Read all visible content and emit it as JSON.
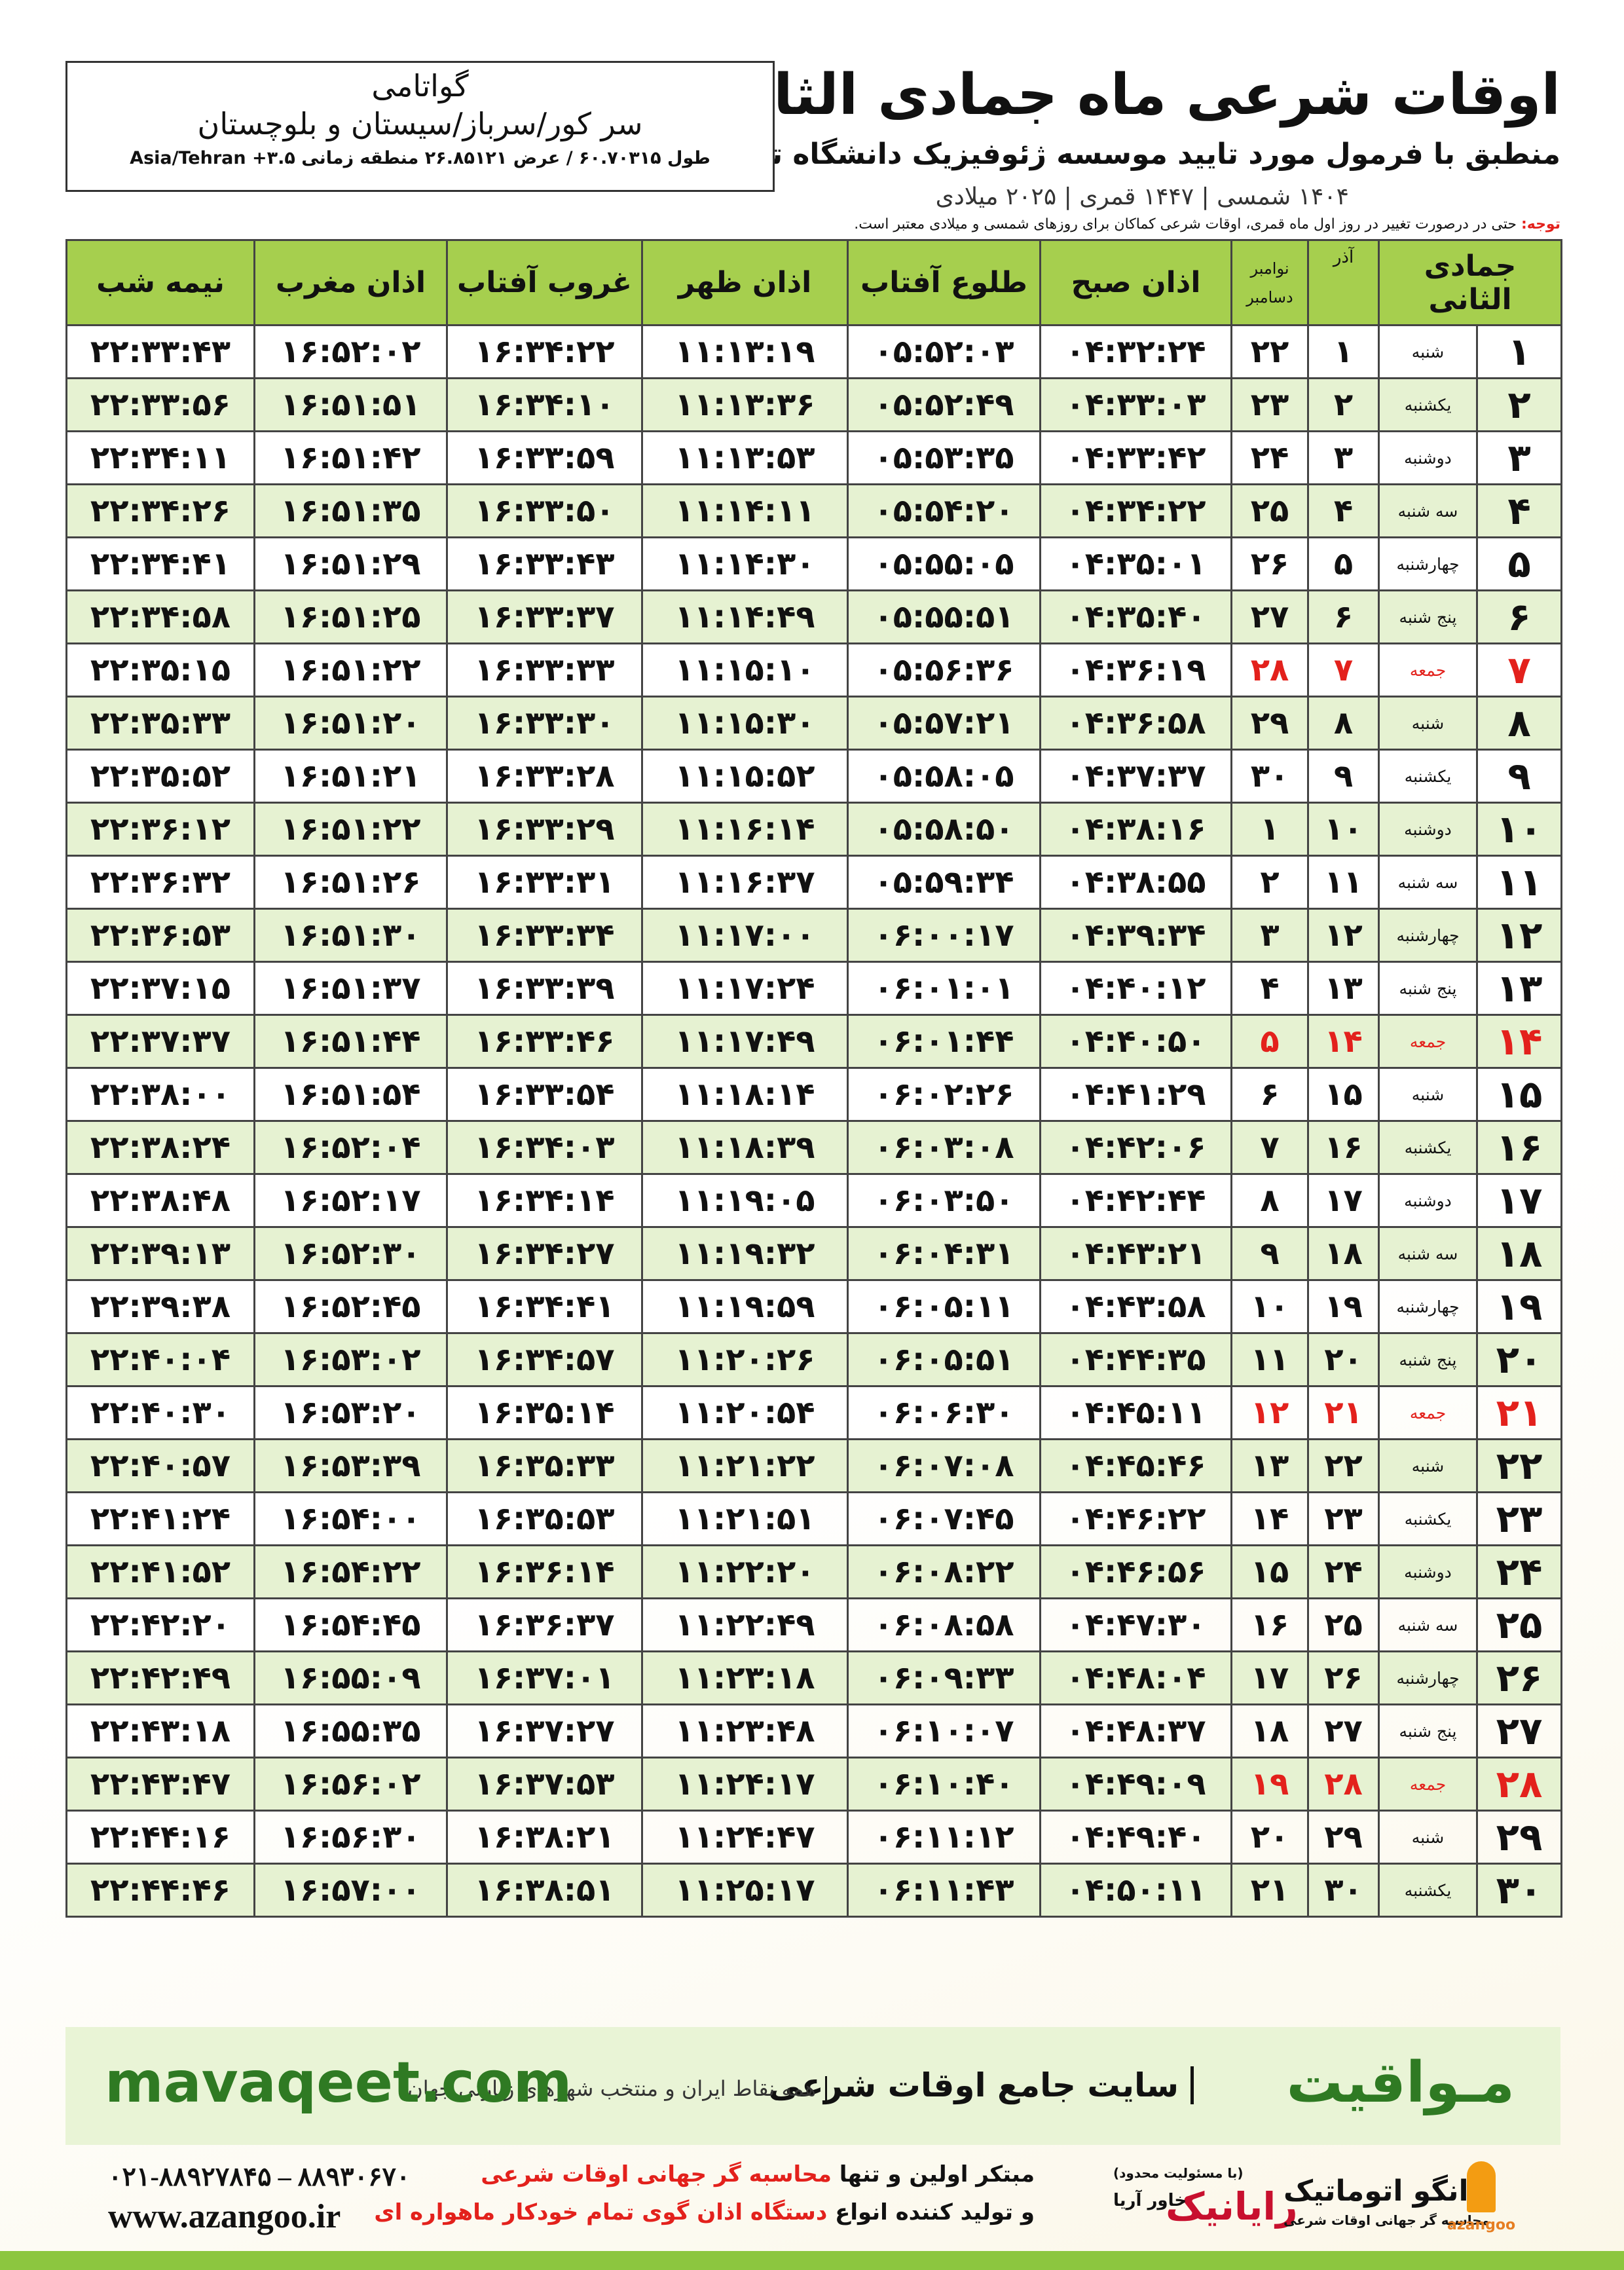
{
  "header": {
    "title": "اوقات شرعی ماه جمادی الثانی",
    "subtitle": "منطبق با فرمول مورد تایید موسسه ژئوفیزیک دانشگاه تهران",
    "dates": "۱۴۰۴ شمسی | ۱۴۴۷ قمری | ۲۰۲۵ میلادی"
  },
  "location": {
    "name": "گواتامی",
    "region": "سر کور/سرباز/سیستان و بلوچستان",
    "coords": "طول ۶۰.۷۰۳۱۵ / عرض ۲۶.۸۵۱۲۱ منطقه زمانی ۳.۵+ Asia/Tehran"
  },
  "note": {
    "label": "توجه:",
    "text": "حتی در درصورت تغییر در روز اول ماه قمری، اوقات شرعی کماکان برای روزهای شمسی و میلادی معتبر است."
  },
  "table": {
    "headers": [
      "جمادی الثانی",
      "آذر",
      [
        "نوامبر",
        "دسامبر"
      ],
      "اذان صبح",
      "طلوع آفتاب",
      "اذان ظهر",
      "غروب آفتاب",
      "اذان مغرب",
      "نیمه شب"
    ],
    "holiday_color": "#e3211c",
    "rows": [
      {
        "cells": [
          "۱",
          "شنبه",
          "۱",
          "۲۲",
          "۰۴:۳۲:۲۴",
          "۰۵:۵۲:۰۳",
          "۱۱:۱۳:۱۹",
          "۱۶:۳۴:۲۲",
          "۱۶:۵۲:۰۲",
          "۲۲:۳۳:۴۳"
        ]
      },
      {
        "cells": [
          "۲",
          "یکشنبه",
          "۲",
          "۲۳",
          "۰۴:۳۳:۰۳",
          "۰۵:۵۲:۴۹",
          "۱۱:۱۳:۳۶",
          "۱۶:۳۴:۱۰",
          "۱۶:۵۱:۵۱",
          "۲۲:۳۳:۵۶"
        ]
      },
      {
        "cells": [
          "۳",
          "دوشنبه",
          "۳",
          "۲۴",
          "۰۴:۳۳:۴۲",
          "۰۵:۵۳:۳۵",
          "۱۱:۱۳:۵۳",
          "۱۶:۳۳:۵۹",
          "۱۶:۵۱:۴۲",
          "۲۲:۳۴:۱۱"
        ]
      },
      {
        "cells": [
          "۴",
          "سه شنبه",
          "۴",
          "۲۵",
          "۰۴:۳۴:۲۲",
          "۰۵:۵۴:۲۰",
          "۱۱:۱۴:۱۱",
          "۱۶:۳۳:۵۰",
          "۱۶:۵۱:۳۵",
          "۲۲:۳۴:۲۶"
        ]
      },
      {
        "cells": [
          "۵",
          "چهارشنبه",
          "۵",
          "۲۶",
          "۰۴:۳۵:۰۱",
          "۰۵:۵۵:۰۵",
          "۱۱:۱۴:۳۰",
          "۱۶:۳۳:۴۳",
          "۱۶:۵۱:۲۹",
          "۲۲:۳۴:۴۱"
        ]
      },
      {
        "cells": [
          "۶",
          "پنج شنبه",
          "۶",
          "۲۷",
          "۰۴:۳۵:۴۰",
          "۰۵:۵۵:۵۱",
          "۱۱:۱۴:۴۹",
          "۱۶:۳۳:۳۷",
          "۱۶:۵۱:۲۵",
          "۲۲:۳۴:۵۸"
        ]
      },
      {
        "cells": [
          "۷",
          "جمعه",
          "۷",
          "۲۸",
          "۰۴:۳۶:۱۹",
          "۰۵:۵۶:۳۶",
          "۱۱:۱۵:۱۰",
          "۱۶:۳۳:۳۳",
          "۱۶:۵۱:۲۲",
          "۲۲:۳۵:۱۵"
        ],
        "holiday": true
      },
      {
        "cells": [
          "۸",
          "شنبه",
          "۸",
          "۲۹",
          "۰۴:۳۶:۵۸",
          "۰۵:۵۷:۲۱",
          "۱۱:۱۵:۳۰",
          "۱۶:۳۳:۳۰",
          "۱۶:۵۱:۲۰",
          "۲۲:۳۵:۳۳"
        ]
      },
      {
        "cells": [
          "۹",
          "یکشنبه",
          "۹",
          "۳۰",
          "۰۴:۳۷:۳۷",
          "۰۵:۵۸:۰۵",
          "۱۱:۱۵:۵۲",
          "۱۶:۳۳:۲۸",
          "۱۶:۵۱:۲۱",
          "۲۲:۳۵:۵۲"
        ]
      },
      {
        "cells": [
          "۱۰",
          "دوشنبه",
          "۱۰",
          "۱",
          "۰۴:۳۸:۱۶",
          "۰۵:۵۸:۵۰",
          "۱۱:۱۶:۱۴",
          "۱۶:۳۳:۲۹",
          "۱۶:۵۱:۲۲",
          "۲۲:۳۶:۱۲"
        ]
      },
      {
        "cells": [
          "۱۱",
          "سه شنبه",
          "۱۱",
          "۲",
          "۰۴:۳۸:۵۵",
          "۰۵:۵۹:۳۴",
          "۱۱:۱۶:۳۷",
          "۱۶:۳۳:۳۱",
          "۱۶:۵۱:۲۶",
          "۲۲:۳۶:۳۲"
        ]
      },
      {
        "cells": [
          "۱۲",
          "چهارشنبه",
          "۱۲",
          "۳",
          "۰۴:۳۹:۳۴",
          "۰۶:۰۰:۱۷",
          "۱۱:۱۷:۰۰",
          "۱۶:۳۳:۳۴",
          "۱۶:۵۱:۳۰",
          "۲۲:۳۶:۵۳"
        ]
      },
      {
        "cells": [
          "۱۳",
          "پنج شنبه",
          "۱۳",
          "۴",
          "۰۴:۴۰:۱۲",
          "۰۶:۰۱:۰۱",
          "۱۱:۱۷:۲۴",
          "۱۶:۳۳:۳۹",
          "۱۶:۵۱:۳۷",
          "۲۲:۳۷:۱۵"
        ]
      },
      {
        "cells": [
          "۱۴",
          "جمعه",
          "۱۴",
          "۵",
          "۰۴:۴۰:۵۰",
          "۰۶:۰۱:۴۴",
          "۱۱:۱۷:۴۹",
          "۱۶:۳۳:۴۶",
          "۱۶:۵۱:۴۴",
          "۲۲:۳۷:۳۷"
        ],
        "holiday": true
      },
      {
        "cells": [
          "۱۵",
          "شنبه",
          "۱۵",
          "۶",
          "۰۴:۴۱:۲۹",
          "۰۶:۰۲:۲۶",
          "۱۱:۱۸:۱۴",
          "۱۶:۳۳:۵۴",
          "۱۶:۵۱:۵۴",
          "۲۲:۳۸:۰۰"
        ]
      },
      {
        "cells": [
          "۱۶",
          "یکشنبه",
          "۱۶",
          "۷",
          "۰۴:۴۲:۰۶",
          "۰۶:۰۳:۰۸",
          "۱۱:۱۸:۳۹",
          "۱۶:۳۴:۰۳",
          "۱۶:۵۲:۰۴",
          "۲۲:۳۸:۲۴"
        ]
      },
      {
        "cells": [
          "۱۷",
          "دوشنبه",
          "۱۷",
          "۸",
          "۰۴:۴۲:۴۴",
          "۰۶:۰۳:۵۰",
          "۱۱:۱۹:۰۵",
          "۱۶:۳۴:۱۴",
          "۱۶:۵۲:۱۷",
          "۲۲:۳۸:۴۸"
        ]
      },
      {
        "cells": [
          "۱۸",
          "سه شنبه",
          "۱۸",
          "۹",
          "۰۴:۴۳:۲۱",
          "۰۶:۰۴:۳۱",
          "۱۱:۱۹:۳۲",
          "۱۶:۳۴:۲۷",
          "۱۶:۵۲:۳۰",
          "۲۲:۳۹:۱۳"
        ]
      },
      {
        "cells": [
          "۱۹",
          "چهارشنبه",
          "۱۹",
          "۱۰",
          "۰۴:۴۳:۵۸",
          "۰۶:۰۵:۱۱",
          "۱۱:۱۹:۵۹",
          "۱۶:۳۴:۴۱",
          "۱۶:۵۲:۴۵",
          "۲۲:۳۹:۳۸"
        ]
      },
      {
        "cells": [
          "۲۰",
          "پنج شنبه",
          "۲۰",
          "۱۱",
          "۰۴:۴۴:۳۵",
          "۰۶:۰۵:۵۱",
          "۱۱:۲۰:۲۶",
          "۱۶:۳۴:۵۷",
          "۱۶:۵۳:۰۲",
          "۲۲:۴۰:۰۴"
        ]
      },
      {
        "cells": [
          "۲۱",
          "جمعه",
          "۲۱",
          "۱۲",
          "۰۴:۴۵:۱۱",
          "۰۶:۰۶:۳۰",
          "۱۱:۲۰:۵۴",
          "۱۶:۳۵:۱۴",
          "۱۶:۵۳:۲۰",
          "۲۲:۴۰:۳۰"
        ],
        "holiday": true
      },
      {
        "cells": [
          "۲۲",
          "شنبه",
          "۲۲",
          "۱۳",
          "۰۴:۴۵:۴۶",
          "۰۶:۰۷:۰۸",
          "۱۱:۲۱:۲۲",
          "۱۶:۳۵:۳۳",
          "۱۶:۵۳:۳۹",
          "۲۲:۴۰:۵۷"
        ]
      },
      {
        "cells": [
          "۲۳",
          "یکشنبه",
          "۲۳",
          "۱۴",
          "۰۴:۴۶:۲۲",
          "۰۶:۰۷:۴۵",
          "۱۱:۲۱:۵۱",
          "۱۶:۳۵:۵۳",
          "۱۶:۵۴:۰۰",
          "۲۲:۴۱:۲۴"
        ]
      },
      {
        "cells": [
          "۲۴",
          "دوشنبه",
          "۲۴",
          "۱۵",
          "۰۴:۴۶:۵۶",
          "۰۶:۰۸:۲۲",
          "۱۱:۲۲:۲۰",
          "۱۶:۳۶:۱۴",
          "۱۶:۵۴:۲۲",
          "۲۲:۴۱:۵۲"
        ]
      },
      {
        "cells": [
          "۲۵",
          "سه شنبه",
          "۲۵",
          "۱۶",
          "۰۴:۴۷:۳۰",
          "۰۶:۰۸:۵۸",
          "۱۱:۲۲:۴۹",
          "۱۶:۳۶:۳۷",
          "۱۶:۵۴:۴۵",
          "۲۲:۴۲:۲۰"
        ]
      },
      {
        "cells": [
          "۲۶",
          "چهارشنبه",
          "۲۶",
          "۱۷",
          "۰۴:۴۸:۰۴",
          "۰۶:۰۹:۳۳",
          "۱۱:۲۳:۱۸",
          "۱۶:۳۷:۰۱",
          "۱۶:۵۵:۰۹",
          "۲۲:۴۲:۴۹"
        ]
      },
      {
        "cells": [
          "۲۷",
          "پنج شنبه",
          "۲۷",
          "۱۸",
          "۰۴:۴۸:۳۷",
          "۰۶:۱۰:۰۷",
          "۱۱:۲۳:۴۸",
          "۱۶:۳۷:۲۷",
          "۱۶:۵۵:۳۵",
          "۲۲:۴۳:۱۸"
        ]
      },
      {
        "cells": [
          "۲۸",
          "جمعه",
          "۲۸",
          "۱۹",
          "۰۴:۴۹:۰۹",
          "۰۶:۱۰:۴۰",
          "۱۱:۲۴:۱۷",
          "۱۶:۳۷:۵۳",
          "۱۶:۵۶:۰۲",
          "۲۲:۴۳:۴۷"
        ],
        "holiday": true
      },
      {
        "cells": [
          "۲۹",
          "شنبه",
          "۲۹",
          "۲۰",
          "۰۴:۴۹:۴۰",
          "۰۶:۱۱:۱۲",
          "۱۱:۲۴:۴۷",
          "۱۶:۳۸:۲۱",
          "۱۶:۵۶:۳۰",
          "۲۲:۴۴:۱۶"
        ]
      },
      {
        "cells": [
          "۳۰",
          "یکشنبه",
          "۳۰",
          "۲۱",
          "۰۴:۵۰:۱۱",
          "۰۶:۱۱:۴۳",
          "۱۱:۲۵:۱۷",
          "۱۶:۳۸:۵۱",
          "۱۶:۵۷:۰۰",
          "۲۲:۴۴:۴۶"
        ]
      }
    ]
  },
  "banner": {
    "logo": "مـواقیت",
    "tagline": "سایت جامع اوقات شرعی",
    "subline": "همه نقاط ایران و منتخب شهرهای زیارتی جهان",
    "url": "mavaqeet.com"
  },
  "footer": {
    "phones": "۰۲۱-۸۸۹۲۷۸۴۵ – ۸۸۹۳۰۶۷۰",
    "website": "www.azangoo.ir",
    "line1": [
      "مبتکر اولین و تنها ",
      "محاسبه گر جهانی اوقات شرعی"
    ],
    "line2": [
      "و تولید کننده انواع ",
      "دستگاه اذان گوی تمام خودکار ماهواره ای"
    ],
    "rayanik": "رایانیک",
    "khavar": "خاور آریا",
    "llc": "(با مسئولیت محدود)",
    "azangoo_fa": "اذانگو اتوماتیک",
    "azangoo_sub": "محاسبه گر جهانی اوقات شرعی",
    "azangoo_en": "azangoo"
  }
}
